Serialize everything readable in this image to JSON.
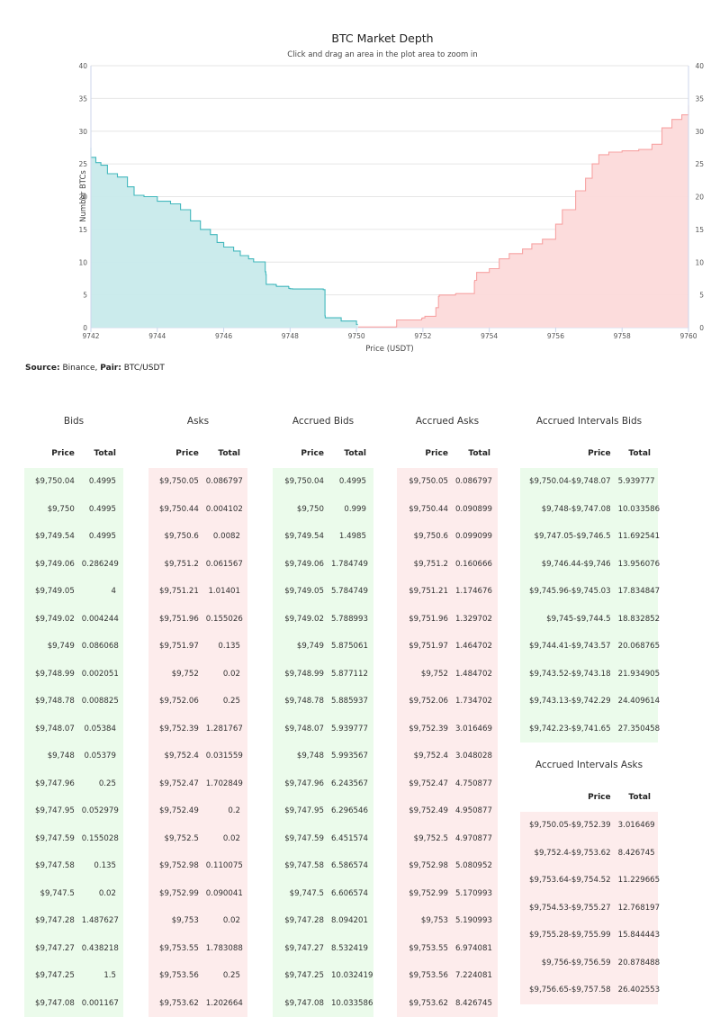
{
  "chart_data": {
    "type": "area",
    "title": "BTC Market Depth",
    "subtitle": "Click and drag an area in the plot area to zoom in",
    "xlabel": "Price (USDT)",
    "ylabel": "Number BTCs",
    "xlim": [
      9742,
      9760
    ],
    "ylim": [
      0,
      40
    ],
    "x_ticks": [
      "9742",
      "9744",
      "9746",
      "9748",
      "9750",
      "9752",
      "9754",
      "9756",
      "9758",
      "9760"
    ],
    "y_ticks": [
      "0",
      "5",
      "10",
      "15",
      "20",
      "25",
      "30",
      "35",
      "40"
    ],
    "grid": true,
    "series": [
      {
        "side": "bids",
        "color": "#43b8bd",
        "fill": "#c8eaeb",
        "points": [
          [
            9750.04,
            0.5
          ],
          [
            9750.0,
            1.0
          ],
          [
            9749.54,
            1.5
          ],
          [
            9749.06,
            1.8
          ],
          [
            9749.05,
            5.8
          ],
          [
            9749.02,
            5.8
          ],
          [
            9749.0,
            5.9
          ],
          [
            9748.99,
            5.9
          ],
          [
            9748.78,
            5.9
          ],
          [
            9748.07,
            5.94
          ],
          [
            9748.0,
            6.0
          ],
          [
            9747.96,
            6.24
          ],
          [
            9747.95,
            6.3
          ],
          [
            9747.59,
            6.45
          ],
          [
            9747.58,
            6.59
          ],
          [
            9747.5,
            6.61
          ],
          [
            9747.28,
            8.09
          ],
          [
            9747.27,
            8.53
          ],
          [
            9747.25,
            10.03
          ],
          [
            9747.08,
            10.04
          ],
          [
            9746.9,
            10.5
          ],
          [
            9746.75,
            11.0
          ],
          [
            9746.5,
            11.7
          ],
          [
            9746.3,
            12.3
          ],
          [
            9746.0,
            13.0
          ],
          [
            9745.8,
            14.2
          ],
          [
            9745.6,
            15.0
          ],
          [
            9745.3,
            16.3
          ],
          [
            9745.0,
            18.0
          ],
          [
            9744.7,
            18.9
          ],
          [
            9744.4,
            19.3
          ],
          [
            9744.0,
            20.0
          ],
          [
            9743.6,
            20.2
          ],
          [
            9743.3,
            21.5
          ],
          [
            9743.1,
            23.0
          ],
          [
            9742.8,
            23.5
          ],
          [
            9742.5,
            24.8
          ],
          [
            9742.3,
            25.2
          ],
          [
            9742.15,
            26.0
          ],
          [
            9742.0,
            27.5
          ]
        ]
      },
      {
        "side": "asks",
        "color": "#f7a3a3",
        "fill": "#fcdada",
        "points": [
          [
            9750.05,
            0.09
          ],
          [
            9750.44,
            0.09
          ],
          [
            9750.6,
            0.1
          ],
          [
            9751.2,
            0.16
          ],
          [
            9751.21,
            1.17
          ],
          [
            9751.96,
            1.33
          ],
          [
            9751.97,
            1.46
          ],
          [
            9752.0,
            1.48
          ],
          [
            9752.06,
            1.73
          ],
          [
            9752.39,
            3.02
          ],
          [
            9752.4,
            3.05
          ],
          [
            9752.47,
            4.75
          ],
          [
            9752.49,
            4.95
          ],
          [
            9752.5,
            4.97
          ],
          [
            9752.98,
            5.08
          ],
          [
            9752.99,
            5.17
          ],
          [
            9753.0,
            5.19
          ],
          [
            9753.55,
            6.97
          ],
          [
            9753.56,
            7.22
          ],
          [
            9753.62,
            8.43
          ],
          [
            9754.0,
            9.0
          ],
          [
            9754.3,
            10.5
          ],
          [
            9754.6,
            11.3
          ],
          [
            9755.0,
            12.0
          ],
          [
            9755.28,
            12.8
          ],
          [
            9755.6,
            13.5
          ],
          [
            9756.0,
            15.8
          ],
          [
            9756.2,
            18.0
          ],
          [
            9756.6,
            20.9
          ],
          [
            9756.9,
            22.8
          ],
          [
            9757.1,
            25.0
          ],
          [
            9757.3,
            26.4
          ],
          [
            9757.6,
            26.8
          ],
          [
            9758.0,
            27.0
          ],
          [
            9758.5,
            27.2
          ],
          [
            9758.9,
            28.0
          ],
          [
            9759.2,
            30.5
          ],
          [
            9759.5,
            31.8
          ],
          [
            9759.8,
            32.5
          ],
          [
            9760.0,
            34.0
          ]
        ]
      }
    ]
  },
  "source": {
    "label": "Source:",
    "value": "Binance,",
    "pair_label": "Pair:",
    "pair_value": "BTC/USDT"
  },
  "tables": {
    "bids": {
      "title": "Bids",
      "col_price": "Price",
      "col_total": "Total",
      "rows": [
        [
          "$9,750.04",
          "0.4995"
        ],
        [
          "$9,750",
          "0.4995"
        ],
        [
          "$9,749.54",
          "0.4995"
        ],
        [
          "$9,749.06",
          "0.286249"
        ],
        [
          "$9,749.05",
          "4"
        ],
        [
          "$9,749.02",
          "0.004244"
        ],
        [
          "$9,749",
          "0.086068"
        ],
        [
          "$9,748.99",
          "0.002051"
        ],
        [
          "$9,748.78",
          "0.008825"
        ],
        [
          "$9,748.07",
          "0.05384"
        ],
        [
          "$9,748",
          "0.05379"
        ],
        [
          "$9,747.96",
          "0.25"
        ],
        [
          "$9,747.95",
          "0.052979"
        ],
        [
          "$9,747.59",
          "0.155028"
        ],
        [
          "$9,747.58",
          "0.135"
        ],
        [
          "$9,747.5",
          "0.02"
        ],
        [
          "$9,747.28",
          "1.487627"
        ],
        [
          "$9,747.27",
          "0.438218"
        ],
        [
          "$9,747.25",
          "1.5"
        ],
        [
          "$9,747.08",
          "0.001167"
        ]
      ]
    },
    "asks": {
      "title": "Asks",
      "col_price": "Price",
      "col_total": "Total",
      "rows": [
        [
          "$9,750.05",
          "0.086797"
        ],
        [
          "$9,750.44",
          "0.004102"
        ],
        [
          "$9,750.6",
          "0.0082"
        ],
        [
          "$9,751.2",
          "0.061567"
        ],
        [
          "$9,751.21",
          "1.01401"
        ],
        [
          "$9,751.96",
          "0.155026"
        ],
        [
          "$9,751.97",
          "0.135"
        ],
        [
          "$9,752",
          "0.02"
        ],
        [
          "$9,752.06",
          "0.25"
        ],
        [
          "$9,752.39",
          "1.281767"
        ],
        [
          "$9,752.4",
          "0.031559"
        ],
        [
          "$9,752.47",
          "1.702849"
        ],
        [
          "$9,752.49",
          "0.2"
        ],
        [
          "$9,752.5",
          "0.02"
        ],
        [
          "$9,752.98",
          "0.110075"
        ],
        [
          "$9,752.99",
          "0.090041"
        ],
        [
          "$9,753",
          "0.02"
        ],
        [
          "$9,753.55",
          "1.783088"
        ],
        [
          "$9,753.56",
          "0.25"
        ],
        [
          "$9,753.62",
          "1.202664"
        ]
      ]
    },
    "accrued_bids": {
      "title": "Accrued Bids",
      "col_price": "Price",
      "col_total": "Total",
      "rows": [
        [
          "$9,750.04",
          "0.4995"
        ],
        [
          "$9,750",
          "0.999"
        ],
        [
          "$9,749.54",
          "1.4985"
        ],
        [
          "$9,749.06",
          "1.784749"
        ],
        [
          "$9,749.05",
          "5.784749"
        ],
        [
          "$9,749.02",
          "5.788993"
        ],
        [
          "$9,749",
          "5.875061"
        ],
        [
          "$9,748.99",
          "5.877112"
        ],
        [
          "$9,748.78",
          "5.885937"
        ],
        [
          "$9,748.07",
          "5.939777"
        ],
        [
          "$9,748",
          "5.993567"
        ],
        [
          "$9,747.96",
          "6.243567"
        ],
        [
          "$9,747.95",
          "6.296546"
        ],
        [
          "$9,747.59",
          "6.451574"
        ],
        [
          "$9,747.58",
          "6.586574"
        ],
        [
          "$9,747.5",
          "6.606574"
        ],
        [
          "$9,747.28",
          "8.094201"
        ],
        [
          "$9,747.27",
          "8.532419"
        ],
        [
          "$9,747.25",
          "10.032419"
        ],
        [
          "$9,747.08",
          "10.033586"
        ]
      ]
    },
    "accrued_asks": {
      "title": "Accrued Asks",
      "col_price": "Price",
      "col_total": "Total",
      "rows": [
        [
          "$9,750.05",
          "0.086797"
        ],
        [
          "$9,750.44",
          "0.090899"
        ],
        [
          "$9,750.6",
          "0.099099"
        ],
        [
          "$9,751.2",
          "0.160666"
        ],
        [
          "$9,751.21",
          "1.174676"
        ],
        [
          "$9,751.96",
          "1.329702"
        ],
        [
          "$9,751.97",
          "1.464702"
        ],
        [
          "$9,752",
          "1.484702"
        ],
        [
          "$9,752.06",
          "1.734702"
        ],
        [
          "$9,752.39",
          "3.016469"
        ],
        [
          "$9,752.4",
          "3.048028"
        ],
        [
          "$9,752.47",
          "4.750877"
        ],
        [
          "$9,752.49",
          "4.950877"
        ],
        [
          "$9,752.5",
          "4.970877"
        ],
        [
          "$9,752.98",
          "5.080952"
        ],
        [
          "$9,752.99",
          "5.170993"
        ],
        [
          "$9,753",
          "5.190993"
        ],
        [
          "$9,753.55",
          "6.974081"
        ],
        [
          "$9,753.56",
          "7.224081"
        ],
        [
          "$9,753.62",
          "8.426745"
        ]
      ]
    },
    "accrued_intervals_bids": {
      "title": "Accrued Intervals Bids",
      "col_price": "Price",
      "col_total": "Total",
      "rows": [
        [
          "$9,750.04-$9,748.07",
          "5.939777"
        ],
        [
          "$9,748-$9,747.08",
          "10.033586"
        ],
        [
          "$9,747.05-$9,746.5",
          "11.692541"
        ],
        [
          "$9,746.44-$9,746",
          "13.956076"
        ],
        [
          "$9,745.96-$9,745.03",
          "17.834847"
        ],
        [
          "$9,745-$9,744.5",
          "18.832852"
        ],
        [
          "$9,744.41-$9,743.57",
          "20.068765"
        ],
        [
          "$9,743.52-$9,743.18",
          "21.934905"
        ],
        [
          "$9,743.13-$9,742.29",
          "24.409614"
        ],
        [
          "$9,742.23-$9,741.65",
          "27.350458"
        ]
      ]
    },
    "accrued_intervals_asks": {
      "title": "Accrued Intervals Asks",
      "col_price": "Price",
      "col_total": "Total",
      "rows": [
        [
          "$9,750.05-$9,752.39",
          "3.016469"
        ],
        [
          "$9,752.4-$9,753.62",
          "8.426745"
        ],
        [
          "$9,753.64-$9,754.52",
          "11.229665"
        ],
        [
          "$9,754.53-$9,755.27",
          "12.768197"
        ],
        [
          "$9,755.28-$9,755.99",
          "15.844443"
        ],
        [
          "$9,756-$9,756.59",
          "20.878488"
        ],
        [
          "$9,756.65-$9,757.58",
          "26.402553"
        ]
      ]
    }
  }
}
